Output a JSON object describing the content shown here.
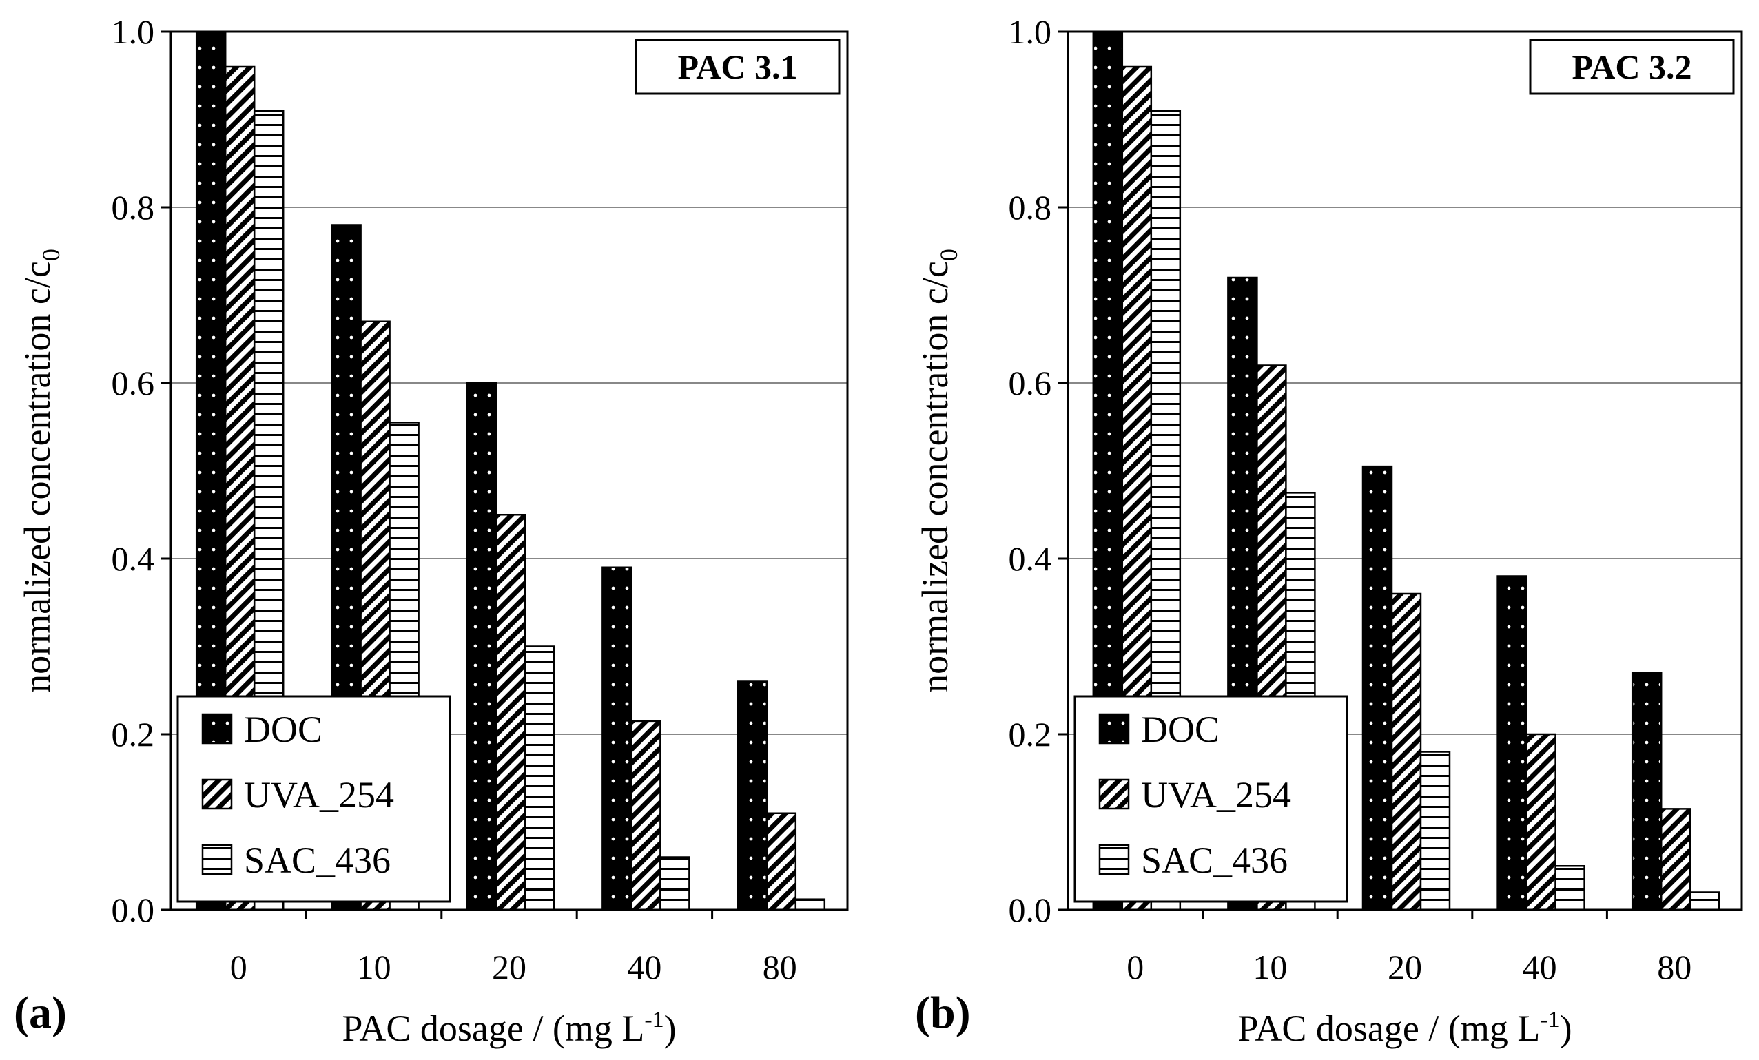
{
  "figure": {
    "colors": {
      "background": "#ffffff",
      "ink": "#000000",
      "grid": "#888888"
    }
  },
  "chart_data": [
    {
      "type": "bar",
      "panel_label": "(a)",
      "title": "PAC 3.1",
      "xlabel": "PAC dosage / (mg L-1)",
      "xlabel_main": "PAC dosage / (mg L",
      "xlabel_sup": "-1",
      "xlabel_close": ")",
      "ylabel": "normalized concentration c/c0",
      "ylabel_main": "normalized concentration c/c",
      "ylabel_sub": "0",
      "ylim": [
        0,
        1.0
      ],
      "yticks": [
        "0.0",
        "0.2",
        "0.4",
        "0.6",
        "0.8",
        "1.0"
      ],
      "grid": true,
      "legend_position": "bottom-left",
      "categories": [
        "0",
        "10",
        "20",
        "40",
        "80"
      ],
      "series": [
        {
          "name": "DOC",
          "pattern": "dots",
          "values": [
            1.0,
            0.78,
            0.6,
            0.39,
            0.26
          ]
        },
        {
          "name": "UVA_254",
          "pattern": "diagonal",
          "values": [
            0.96,
            0.67,
            0.45,
            0.215,
            0.11
          ]
        },
        {
          "name": "SAC_436",
          "pattern": "horizontal",
          "values": [
            0.91,
            0.555,
            0.3,
            0.06,
            0.012
          ]
        }
      ]
    },
    {
      "type": "bar",
      "panel_label": "(b)",
      "title": "PAC 3.2",
      "xlabel": "PAC dosage / (mg L-1)",
      "xlabel_main": "PAC dosage / (mg L",
      "xlabel_sup": "-1",
      "xlabel_close": ")",
      "ylabel": "normalized concentration c/c0",
      "ylabel_main": "normalized concentration c/c",
      "ylabel_sub": "0",
      "ylim": [
        0,
        1.0
      ],
      "yticks": [
        "0.0",
        "0.2",
        "0.4",
        "0.6",
        "0.8",
        "1.0"
      ],
      "grid": true,
      "legend_position": "bottom-left",
      "categories": [
        "0",
        "10",
        "20",
        "40",
        "80"
      ],
      "series": [
        {
          "name": "DOC",
          "pattern": "dots",
          "values": [
            1.0,
            0.72,
            0.505,
            0.38,
            0.27
          ]
        },
        {
          "name": "UVA_254",
          "pattern": "diagonal",
          "values": [
            0.96,
            0.62,
            0.36,
            0.2,
            0.115
          ]
        },
        {
          "name": "SAC_436",
          "pattern": "horizontal",
          "values": [
            0.91,
            0.475,
            0.18,
            0.05,
            0.02
          ]
        }
      ]
    }
  ]
}
